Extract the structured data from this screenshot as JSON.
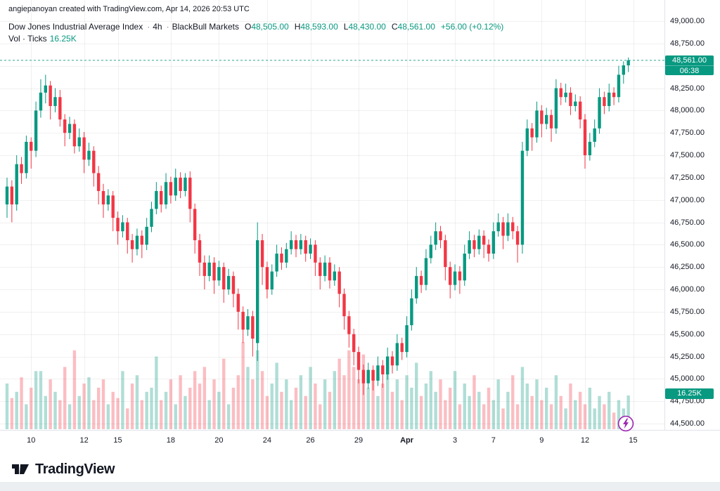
{
  "header": {
    "attribution": "angiepanoyan created with TradingView.com, Apr 14, 2026 20:53 UTC"
  },
  "legend": {
    "symbol": "Dow Jones Industrial Average Index",
    "separator": "·",
    "interval": "4h",
    "exchange": "BlackBull Markets",
    "ohlc": {
      "o_label": "O",
      "o": "48,505.00",
      "h_label": "H",
      "h": "48,593.00",
      "l_label": "L",
      "l": "48,430.00",
      "c_label": "C",
      "c": "48,561.00",
      "change": "+56.00 (+0.12%)"
    },
    "volume_label": "Vol · Ticks",
    "volume_value": "16.25K"
  },
  "price_axis": {
    "last_price": "48,561.00",
    "countdown": "06:38",
    "volume_badge": "16.25K"
  },
  "footer": {
    "brand": "TradingView"
  },
  "icons": {
    "boost": "lightning-bolt-icon",
    "logo": "tradingview-logo-icon"
  },
  "colors": {
    "up": "#089981",
    "down": "#f23645",
    "vol_up": "rgba(8,153,129,0.32)",
    "vol_down": "rgba(242,54,69,0.32)",
    "grid": "rgba(42,46,57,0.07)",
    "axis_text": "#131722",
    "badge": "#089981",
    "accent_purple": "#9c27b0"
  },
  "chart_data": {
    "type": "candlestick",
    "title": "Dow Jones Industrial Average Index, 4h, BlackBull Markets",
    "subtitle": "Vol · Ticks",
    "ylim": [
      44500,
      49000
    ],
    "y_tick_step": 250,
    "grid": true,
    "last": {
      "open": 48505,
      "high": 48593,
      "low": 48430,
      "close": 48561,
      "change": 56,
      "change_pct": 0.12,
      "countdown": "06:38",
      "volume_k": 16.25
    },
    "y_ticks": [
      "49,000.00",
      "48,750.00",
      "48,500.00",
      "48,250.00",
      "48,000.00",
      "47,750.00",
      "47,500.00",
      "47,250.00",
      "47,000.00",
      "46,750.00",
      "46,500.00",
      "46,250.00",
      "46,000.00",
      "45,750.00",
      "45,500.00",
      "45,250.00",
      "45,000.00",
      "44,750.00",
      "44,500.00"
    ],
    "x_ticks": [
      {
        "t": "10",
        "i": 5
      },
      {
        "t": "12",
        "i": 16
      },
      {
        "t": "15",
        "i": 23
      },
      {
        "t": "18",
        "i": 34
      },
      {
        "t": "20",
        "i": 44
      },
      {
        "t": "24",
        "i": 54
      },
      {
        "t": "26",
        "i": 63
      },
      {
        "t": "29",
        "i": 73
      },
      {
        "t": "Apr",
        "i": 83,
        "strong": true
      },
      {
        "t": "3",
        "i": 93
      },
      {
        "t": "7",
        "i": 101
      },
      {
        "t": "9",
        "i": 111
      },
      {
        "t": "12",
        "i": 120
      },
      {
        "t": "15",
        "i": 130
      }
    ],
    "vol_max_k": 44,
    "candles_ohlc": [
      [
        46950,
        47250,
        46800,
        47150
      ],
      [
        47150,
        47220,
        46750,
        46950
      ],
      [
        46950,
        47500,
        46880,
        47400
      ],
      [
        47400,
        47480,
        47180,
        47300
      ],
      [
        47300,
        47720,
        47240,
        47650
      ],
      [
        47650,
        47700,
        47350,
        47550
      ],
      [
        47550,
        48100,
        47480,
        48000
      ],
      [
        48000,
        48350,
        47920,
        48200
      ],
      [
        48200,
        48400,
        48080,
        48280
      ],
      [
        48280,
        48330,
        47900,
        48050
      ],
      [
        48050,
        48250,
        47980,
        48150
      ],
      [
        48150,
        48230,
        47820,
        47900
      ],
      [
        47900,
        47960,
        47600,
        47750
      ],
      [
        47750,
        47930,
        47680,
        47850
      ],
      [
        47850,
        47900,
        47520,
        47600
      ],
      [
        47600,
        47800,
        47540,
        47700
      ],
      [
        47700,
        47760,
        47300,
        47450
      ],
      [
        47450,
        47640,
        47380,
        47550
      ],
      [
        47550,
        47600,
        47150,
        47300
      ],
      [
        47300,
        47380,
        46950,
        47100
      ],
      [
        47100,
        47180,
        46800,
        46950
      ],
      [
        46950,
        47120,
        46880,
        47050
      ],
      [
        47050,
        47100,
        46650,
        46800
      ],
      [
        46800,
        46870,
        46500,
        46650
      ],
      [
        46650,
        46830,
        46580,
        46750
      ],
      [
        46750,
        46800,
        46400,
        46550
      ],
      [
        46550,
        46620,
        46300,
        46450
      ],
      [
        46450,
        46680,
        46380,
        46600
      ],
      [
        46600,
        46660,
        46350,
        46500
      ],
      [
        46500,
        46800,
        46440,
        46700
      ],
      [
        46700,
        46980,
        46640,
        46900
      ],
      [
        46900,
        47200,
        46840,
        47100
      ],
      [
        47100,
        47160,
        46860,
        46950
      ],
      [
        46950,
        47300,
        46900,
        47200
      ],
      [
        47200,
        47260,
        46960,
        47050
      ],
      [
        47050,
        47350,
        46990,
        47250
      ],
      [
        47250,
        47310,
        47020,
        47100
      ],
      [
        47100,
        47300,
        47040,
        47250
      ],
      [
        47250,
        47320,
        46750,
        46900
      ],
      [
        46900,
        46960,
        46400,
        46550
      ],
      [
        46550,
        46620,
        46150,
        46300
      ],
      [
        46300,
        46380,
        46000,
        46150
      ],
      [
        46150,
        46380,
        46090,
        46300
      ],
      [
        46300,
        46360,
        45950,
        46100
      ],
      [
        46100,
        46320,
        46040,
        46250
      ],
      [
        46250,
        46300,
        45850,
        46000
      ],
      [
        46000,
        46230,
        45940,
        46150
      ],
      [
        46150,
        46200,
        45800,
        45950
      ],
      [
        45950,
        46010,
        45550,
        45750
      ],
      [
        45750,
        45810,
        45400,
        45550
      ],
      [
        45550,
        45780,
        45480,
        45700
      ],
      [
        45700,
        45760,
        45250,
        45450
      ],
      [
        45400,
        46750,
        45200,
        46550
      ],
      [
        46550,
        46620,
        46050,
        46250
      ],
      [
        46250,
        46310,
        45900,
        46000
      ],
      [
        46000,
        46280,
        45940,
        46200
      ],
      [
        46200,
        46500,
        46140,
        46400
      ],
      [
        46400,
        46470,
        46220,
        46300
      ],
      [
        46300,
        46520,
        46240,
        46450
      ],
      [
        46450,
        46650,
        46390,
        46550
      ],
      [
        46550,
        46610,
        46360,
        46450
      ],
      [
        46450,
        46620,
        46390,
        46550
      ],
      [
        46550,
        46600,
        46310,
        46400
      ],
      [
        46400,
        46570,
        46340,
        46500
      ],
      [
        46500,
        46550,
        46150,
        46300
      ],
      [
        46300,
        46360,
        46000,
        46150
      ],
      [
        46150,
        46380,
        46090,
        46300
      ],
      [
        46300,
        46360,
        46010,
        46100
      ],
      [
        46100,
        46280,
        46040,
        46200
      ],
      [
        46200,
        46250,
        45800,
        45950
      ],
      [
        45950,
        46010,
        45550,
        45700
      ],
      [
        45700,
        45760,
        45350,
        45500
      ],
      [
        45500,
        45560,
        45150,
        45300
      ],
      [
        45300,
        45360,
        44950,
        45100
      ],
      [
        45100,
        45160,
        44820,
        44950
      ],
      [
        44950,
        45180,
        44890,
        45100
      ],
      [
        45100,
        45150,
        44870,
        44980
      ],
      [
        44980,
        45250,
        44920,
        45150
      ],
      [
        45150,
        45210,
        44900,
        45050
      ],
      [
        45050,
        45350,
        44990,
        45250
      ],
      [
        45250,
        45310,
        45060,
        45150
      ],
      [
        45150,
        45500,
        45090,
        45400
      ],
      [
        45400,
        45460,
        45210,
        45300
      ],
      [
        45300,
        45700,
        45240,
        45600
      ],
      [
        45600,
        46000,
        45540,
        45900
      ],
      [
        45900,
        46250,
        45840,
        46150
      ],
      [
        46150,
        46210,
        45960,
        46050
      ],
      [
        46050,
        46450,
        45990,
        46350
      ],
      [
        46350,
        46600,
        46290,
        46500
      ],
      [
        46500,
        46750,
        46440,
        46650
      ],
      [
        46650,
        46710,
        46460,
        46550
      ],
      [
        46550,
        46610,
        46100,
        46250
      ],
      [
        46250,
        46310,
        45900,
        46050
      ],
      [
        46050,
        46280,
        45990,
        46200
      ],
      [
        46200,
        46260,
        45950,
        46100
      ],
      [
        46100,
        46500,
        46040,
        46400
      ],
      [
        46400,
        46650,
        46340,
        46550
      ],
      [
        46550,
        46610,
        46360,
        46450
      ],
      [
        46450,
        46670,
        46390,
        46600
      ],
      [
        46600,
        46660,
        46350,
        46500
      ],
      [
        46500,
        46560,
        46310,
        46400
      ],
      [
        46400,
        46750,
        46340,
        46650
      ],
      [
        46650,
        46850,
        46590,
        46750
      ],
      [
        46750,
        46810,
        46450,
        46600
      ],
      [
        46600,
        46850,
        46540,
        46750
      ],
      [
        46750,
        46810,
        46560,
        46650
      ],
      [
        46650,
        46710,
        46300,
        46500
      ],
      [
        46500,
        47650,
        46400,
        47550
      ],
      [
        47550,
        47900,
        47490,
        47800
      ],
      [
        47800,
        47860,
        47550,
        47700
      ],
      [
        47700,
        48100,
        47640,
        48000
      ],
      [
        48000,
        48060,
        47700,
        47850
      ],
      [
        47850,
        48030,
        47790,
        47950
      ],
      [
        47950,
        48010,
        47650,
        47800
      ],
      [
        47800,
        48350,
        47740,
        48250
      ],
      [
        48250,
        48310,
        48060,
        48150
      ],
      [
        48150,
        48300,
        48090,
        48200
      ],
      [
        48200,
        48260,
        47950,
        48050
      ],
      [
        48050,
        48180,
        47990,
        48100
      ],
      [
        48100,
        48160,
        47800,
        47900
      ],
      [
        47900,
        47960,
        47350,
        47500
      ],
      [
        47500,
        47750,
        47440,
        47650
      ],
      [
        47650,
        47900,
        47590,
        47800
      ],
      [
        47800,
        48250,
        47740,
        48150
      ],
      [
        48150,
        48210,
        47960,
        48050
      ],
      [
        48050,
        48300,
        47990,
        48200
      ],
      [
        48200,
        48260,
        48060,
        48150
      ],
      [
        48150,
        48500,
        48090,
        48400
      ],
      [
        48400,
        48550,
        48300,
        48505
      ],
      [
        48505,
        48593,
        48430,
        48561
      ]
    ],
    "volumes_k": [
      22,
      15,
      18,
      25,
      12,
      20,
      28,
      28,
      16,
      24,
      18,
      14,
      30,
      12,
      38,
      16,
      22,
      25,
      14,
      20,
      24,
      12,
      18,
      15,
      28,
      10,
      22,
      26,
      14,
      18,
      20,
      35,
      14,
      18,
      24,
      12,
      26,
      16,
      20,
      28,
      22,
      30,
      14,
      24,
      18,
      34,
      12,
      20,
      26,
      42,
      30,
      24,
      38,
      28,
      16,
      22,
      32,
      18,
      24,
      14,
      20,
      26,
      16,
      30,
      22,
      12,
      24,
      18,
      28,
      34,
      26,
      38,
      30,
      24,
      36,
      20,
      28,
      16,
      22,
      30,
      18,
      24,
      14,
      26,
      20,
      32,
      16,
      22,
      28,
      18,
      24,
      14,
      20,
      28,
      12,
      22,
      16,
      26,
      18,
      12,
      20,
      14,
      24,
      10,
      18,
      26,
      12,
      30,
      22,
      16,
      24,
      14,
      20,
      12,
      26,
      16,
      10,
      22,
      14,
      18,
      12,
      20,
      10,
      16,
      12,
      18,
      8,
      14,
      10,
      16.25
    ]
  }
}
